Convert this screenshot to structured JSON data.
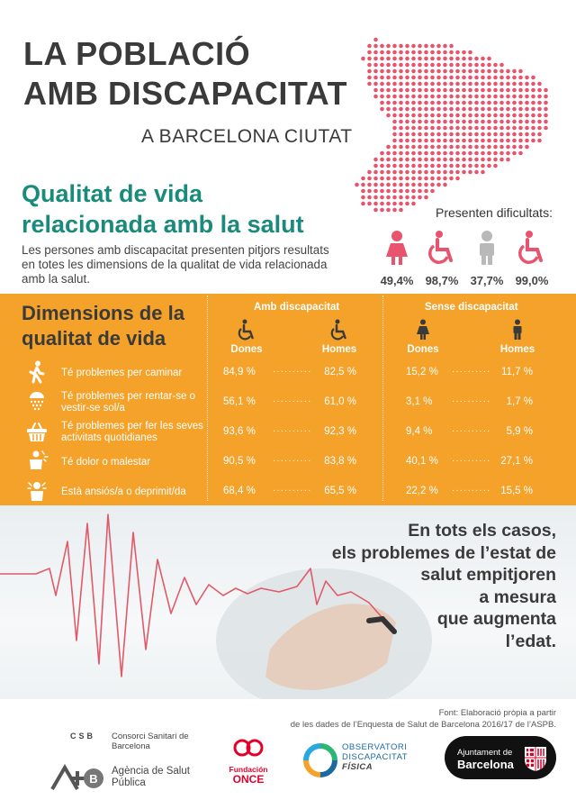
{
  "header": {
    "title_line1": "LA POBLACIÓ",
    "title_line2": "AMB DISCAPACITAT",
    "subtitle": "A BARCELONA CIUTAT"
  },
  "section": {
    "title_line1": "Qualitat de vida",
    "title_line2": "relacionada amb la salut",
    "intro": "Les persones amb discapacitat presenten pitjors resultats en totes les dimensions de la qualitat de vida relacionada amb la salut."
  },
  "difficulties": {
    "title": "Presenten dificultats:",
    "items": [
      {
        "icon": "woman-icon",
        "value": "49,4%",
        "color": "#e8546e"
      },
      {
        "icon": "wheelchair-icon",
        "value": "98,7%",
        "color": "#e8546e"
      },
      {
        "icon": "man-icon",
        "value": "37,7%",
        "color": "#b9b9b9"
      },
      {
        "icon": "wheelchair-icon",
        "value": "99,0%",
        "color": "#e8546e"
      }
    ]
  },
  "table": {
    "title_line1": "Dimensions de la",
    "title_line2": "qualitat de vida",
    "group_amb": "Amb discapacitat",
    "group_sense": "Sense discapacitat",
    "col_dones": "Dones",
    "col_homes": "Homes",
    "rows": [
      {
        "icon": "walking-icon",
        "label": "Té problemes per caminar",
        "amb_dones": "84,9 %",
        "amb_homes": "82,5 %",
        "sense_dones": "15,2 %",
        "sense_homes": "11,7 %"
      },
      {
        "icon": "shower-icon",
        "label": "Té problemes per rentar-se o vestir-se sol/a",
        "amb_dones": "56,1 %",
        "amb_homes": "61,0 %",
        "sense_dones": "3,1 %",
        "sense_homes": "1,7 %"
      },
      {
        "icon": "basket-icon",
        "label": "Té problemes per fer les seves activitats quotidianes",
        "amb_dones": "93,6 %",
        "amb_homes": "92,3 %",
        "sense_dones": "9,4 %",
        "sense_homes": "5,9 %"
      },
      {
        "icon": "pain-icon",
        "label": "Té dolor o malestar",
        "amb_dones": "90,5 %",
        "amb_homes": "83,8 %",
        "sense_dones": "40,1 %",
        "sense_homes": "27,1 %"
      },
      {
        "icon": "anxiety-icon",
        "label": "Està ansiós/a o deprimit/da",
        "amb_dones": "68,4 %",
        "amb_homes": "65,5 %",
        "sense_dones": "22,2 %",
        "sense_homes": "15,5 %"
      }
    ]
  },
  "quote": {
    "lines": [
      "En tots els casos,",
      "els problemes de l’estat de",
      "salut empitjoren",
      "a mesura",
      "que augmenta",
      "l’edat."
    ]
  },
  "source": {
    "line1": "Font: Elaboració pròpia a partir",
    "line2": "de les dades de l’Enquesta de Salut de Barcelona 2016/17 de l’ASPB."
  },
  "logos": {
    "csb_mark": "CSB",
    "csb_text": "Consorci Sanitari de Barcelona",
    "asp_text": "Agència de Salut Pública",
    "once_t1": "Fundación",
    "once_t2": "ONCE",
    "obs_line1": "OBSERVATORI",
    "obs_line2": "DISCAPACITAT",
    "obs_line3": "FÍSICA",
    "ajb_line1": "Ajuntament de",
    "ajb_line2": "Barcelona"
  },
  "colors": {
    "teal": "#1a8a7a",
    "orange": "#f4a22a",
    "pink": "#e8546e",
    "grey": "#b9b9b9"
  }
}
